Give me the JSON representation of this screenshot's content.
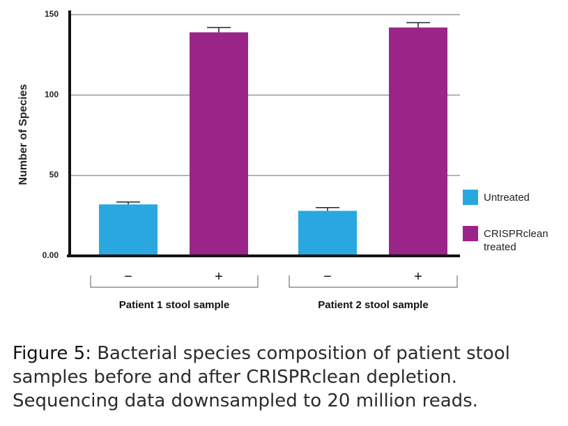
{
  "chart_data": {
    "type": "bar",
    "ylabel": "Number of Species",
    "xlabel": "",
    "ylim": [
      0,
      150
    ],
    "y_ticks": [
      "0.00",
      "50",
      "100",
      "150"
    ],
    "y_tick_values": [
      0,
      50,
      100,
      150
    ],
    "grid": true,
    "legend_position": "right",
    "groups": [
      {
        "label": "Patient 1 stool sample",
        "categories": [
          "−",
          "+"
        ]
      },
      {
        "label": "Patient 2 stool sample",
        "categories": [
          "−",
          "+"
        ]
      }
    ],
    "series": [
      {
        "name": "Untreated",
        "color": "#29a8e0",
        "values": [
          32,
          28
        ],
        "errors": [
          1.5,
          2
        ]
      },
      {
        "name": "CRISPRclean treated",
        "color": "#9b2489",
        "values": [
          139,
          142
        ],
        "errors": [
          3,
          3
        ]
      }
    ]
  },
  "legend": [
    {
      "label": "Untreated",
      "color": "#29a8e0"
    },
    {
      "label": "CRISPRclean treated",
      "color": "#9b2489"
    }
  ],
  "caption": {
    "label": "Figure 5:",
    "text": " Bacterial species composition of patient stool samples before and after CRISPRclean depletion. Sequencing data downsampled to 20 million reads."
  }
}
